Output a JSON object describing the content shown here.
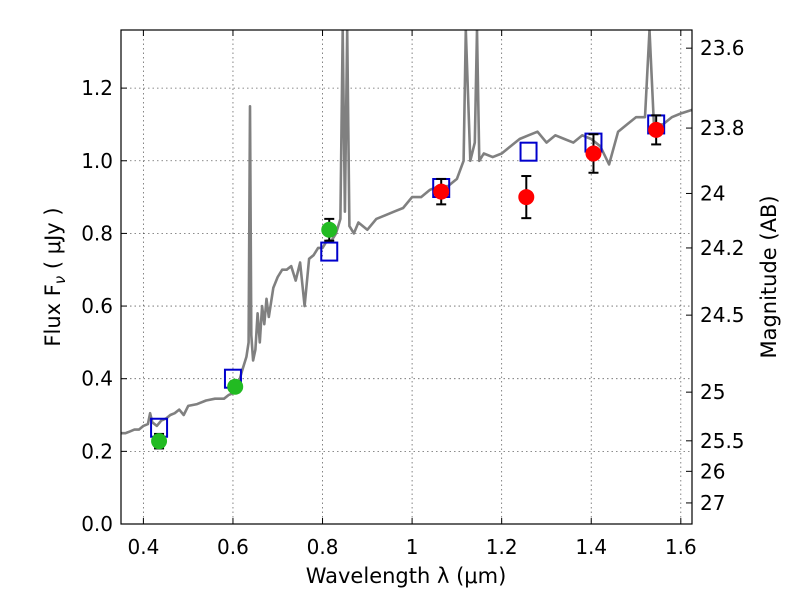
{
  "chart_data": {
    "type": "scatter",
    "xlabel": "Wavelength  λ (μm)",
    "ylabel": "Flux  F",
    "ylabel_subscript": "ν",
    "ylabel_unit": "  ( μJy )",
    "y2label": "Magnitude (AB)",
    "xlim": [
      0.35,
      1.625
    ],
    "ylim": [
      0.0,
      1.36
    ],
    "grid": true,
    "x_ticks": [
      0.4,
      0.6,
      0.8,
      1.0,
      1.2,
      1.4,
      1.6
    ],
    "x_tick_labels": [
      "0.4",
      "0.6",
      "0.8",
      "1",
      "1.2",
      "1.4",
      "1.6"
    ],
    "y_ticks": [
      0.0,
      0.2,
      0.4,
      0.6,
      0.8,
      1.0,
      1.2
    ],
    "y_tick_labels": [
      "0.0",
      "0.2",
      "0.4",
      "0.6",
      "0.8",
      "1.0",
      "1.2"
    ],
    "right_axis_ticks": [
      {
        "label": "23.6",
        "flux": 1.31
      },
      {
        "label": "23.8",
        "flux": 1.09
      },
      {
        "label": "24",
        "flux": 0.91
      },
      {
        "label": "24.2",
        "flux": 0.76
      },
      {
        "label": "24.5",
        "flux": 0.575
      },
      {
        "label": "25",
        "flux": 0.363
      },
      {
        "label": "25.5",
        "flux": 0.229
      },
      {
        "label": "26",
        "flux": 0.145
      },
      {
        "label": "27",
        "flux": 0.058
      }
    ],
    "colors": {
      "model": "#808080",
      "green_points": "#22bb22",
      "red_points": "#ff0000",
      "boxes": "#0000cc",
      "errorbars": "#000000"
    },
    "series": [
      {
        "name": "model spectrum",
        "kind": "line",
        "points": [
          [
            0.35,
            0.25
          ],
          [
            0.36,
            0.25
          ],
          [
            0.37,
            0.255
          ],
          [
            0.38,
            0.26
          ],
          [
            0.39,
            0.26
          ],
          [
            0.4,
            0.27
          ],
          [
            0.41,
            0.275
          ],
          [
            0.415,
            0.305
          ],
          [
            0.42,
            0.28
          ],
          [
            0.43,
            0.27
          ],
          [
            0.44,
            0.285
          ],
          [
            0.45,
            0.29
          ],
          [
            0.46,
            0.3
          ],
          [
            0.47,
            0.305
          ],
          [
            0.48,
            0.315
          ],
          [
            0.49,
            0.3
          ],
          [
            0.5,
            0.325
          ],
          [
            0.52,
            0.33
          ],
          [
            0.54,
            0.34
          ],
          [
            0.56,
            0.345
          ],
          [
            0.58,
            0.345
          ],
          [
            0.59,
            0.355
          ],
          [
            0.6,
            0.36
          ],
          [
            0.61,
            0.375
          ],
          [
            0.62,
            0.42
          ],
          [
            0.63,
            0.46
          ],
          [
            0.635,
            0.5
          ],
          [
            0.638,
            1.15
          ],
          [
            0.641,
            0.52
          ],
          [
            0.645,
            0.45
          ],
          [
            0.65,
            0.48
          ],
          [
            0.655,
            0.58
          ],
          [
            0.66,
            0.5
          ],
          [
            0.665,
            0.6
          ],
          [
            0.67,
            0.55
          ],
          [
            0.675,
            0.62
          ],
          [
            0.68,
            0.57
          ],
          [
            0.69,
            0.65
          ],
          [
            0.7,
            0.68
          ],
          [
            0.71,
            0.7
          ],
          [
            0.72,
            0.7
          ],
          [
            0.73,
            0.71
          ],
          [
            0.74,
            0.67
          ],
          [
            0.75,
            0.72
          ],
          [
            0.76,
            0.6
          ],
          [
            0.77,
            0.73
          ],
          [
            0.78,
            0.74
          ],
          [
            0.79,
            0.76
          ],
          [
            0.8,
            0.76
          ],
          [
            0.81,
            0.78
          ],
          [
            0.82,
            0.78
          ],
          [
            0.83,
            0.8
          ],
          [
            0.84,
            0.84
          ],
          [
            0.845,
            1.36
          ],
          [
            0.85,
            0.86
          ],
          [
            0.855,
            1.36
          ],
          [
            0.86,
            0.82
          ],
          [
            0.87,
            0.8
          ],
          [
            0.88,
            0.83
          ],
          [
            0.9,
            0.81
          ],
          [
            0.92,
            0.84
          ],
          [
            0.94,
            0.85
          ],
          [
            0.96,
            0.86
          ],
          [
            0.98,
            0.87
          ],
          [
            1.0,
            0.9
          ],
          [
            1.02,
            0.9
          ],
          [
            1.04,
            0.92
          ],
          [
            1.06,
            0.93
          ],
          [
            1.08,
            0.93
          ],
          [
            1.1,
            0.95
          ],
          [
            1.115,
            1.0
          ],
          [
            1.12,
            1.36
          ],
          [
            1.13,
            1.0
          ],
          [
            1.14,
            1.05
          ],
          [
            1.145,
            1.36
          ],
          [
            1.15,
            1.0
          ],
          [
            1.16,
            1.02
          ],
          [
            1.18,
            1.01
          ],
          [
            1.2,
            1.02
          ],
          [
            1.22,
            1.04
          ],
          [
            1.24,
            1.06
          ],
          [
            1.26,
            1.07
          ],
          [
            1.28,
            1.08
          ],
          [
            1.3,
            1.05
          ],
          [
            1.32,
            1.07
          ],
          [
            1.34,
            1.06
          ],
          [
            1.36,
            1.05
          ],
          [
            1.38,
            1.07
          ],
          [
            1.4,
            1.06
          ],
          [
            1.42,
            1.04
          ],
          [
            1.44,
            0.99
          ],
          [
            1.46,
            1.08
          ],
          [
            1.48,
            1.1
          ],
          [
            1.5,
            1.12
          ],
          [
            1.52,
            1.12
          ],
          [
            1.53,
            1.36
          ],
          [
            1.54,
            1.1
          ],
          [
            1.56,
            1.1
          ],
          [
            1.58,
            1.12
          ],
          [
            1.6,
            1.13
          ],
          [
            1.625,
            1.14
          ]
        ]
      },
      {
        "name": "green detections",
        "kind": "markers",
        "points": [
          {
            "x": 0.435,
            "y": 0.228,
            "err": 0.02
          },
          {
            "x": 0.605,
            "y": 0.378,
            "err": 0.015
          },
          {
            "x": 0.815,
            "y": 0.81,
            "err": 0.03
          }
        ]
      },
      {
        "name": "red detections",
        "kind": "markers",
        "points": [
          {
            "x": 1.065,
            "y": 0.915,
            "err": 0.035
          },
          {
            "x": 1.255,
            "y": 0.9,
            "err": 0.058
          },
          {
            "x": 1.405,
            "y": 1.02,
            "err": 0.053
          },
          {
            "x": 1.545,
            "y": 1.085,
            "err": 0.04
          }
        ]
      },
      {
        "name": "model band fluxes",
        "kind": "boxes",
        "points": [
          {
            "x": 0.435,
            "y": 0.265
          },
          {
            "x": 0.6,
            "y": 0.4
          },
          {
            "x": 0.815,
            "y": 0.75
          },
          {
            "x": 1.065,
            "y": 0.925
          },
          {
            "x": 1.26,
            "y": 1.025
          },
          {
            "x": 1.405,
            "y": 1.05
          },
          {
            "x": 1.545,
            "y": 1.1
          }
        ]
      }
    ]
  }
}
